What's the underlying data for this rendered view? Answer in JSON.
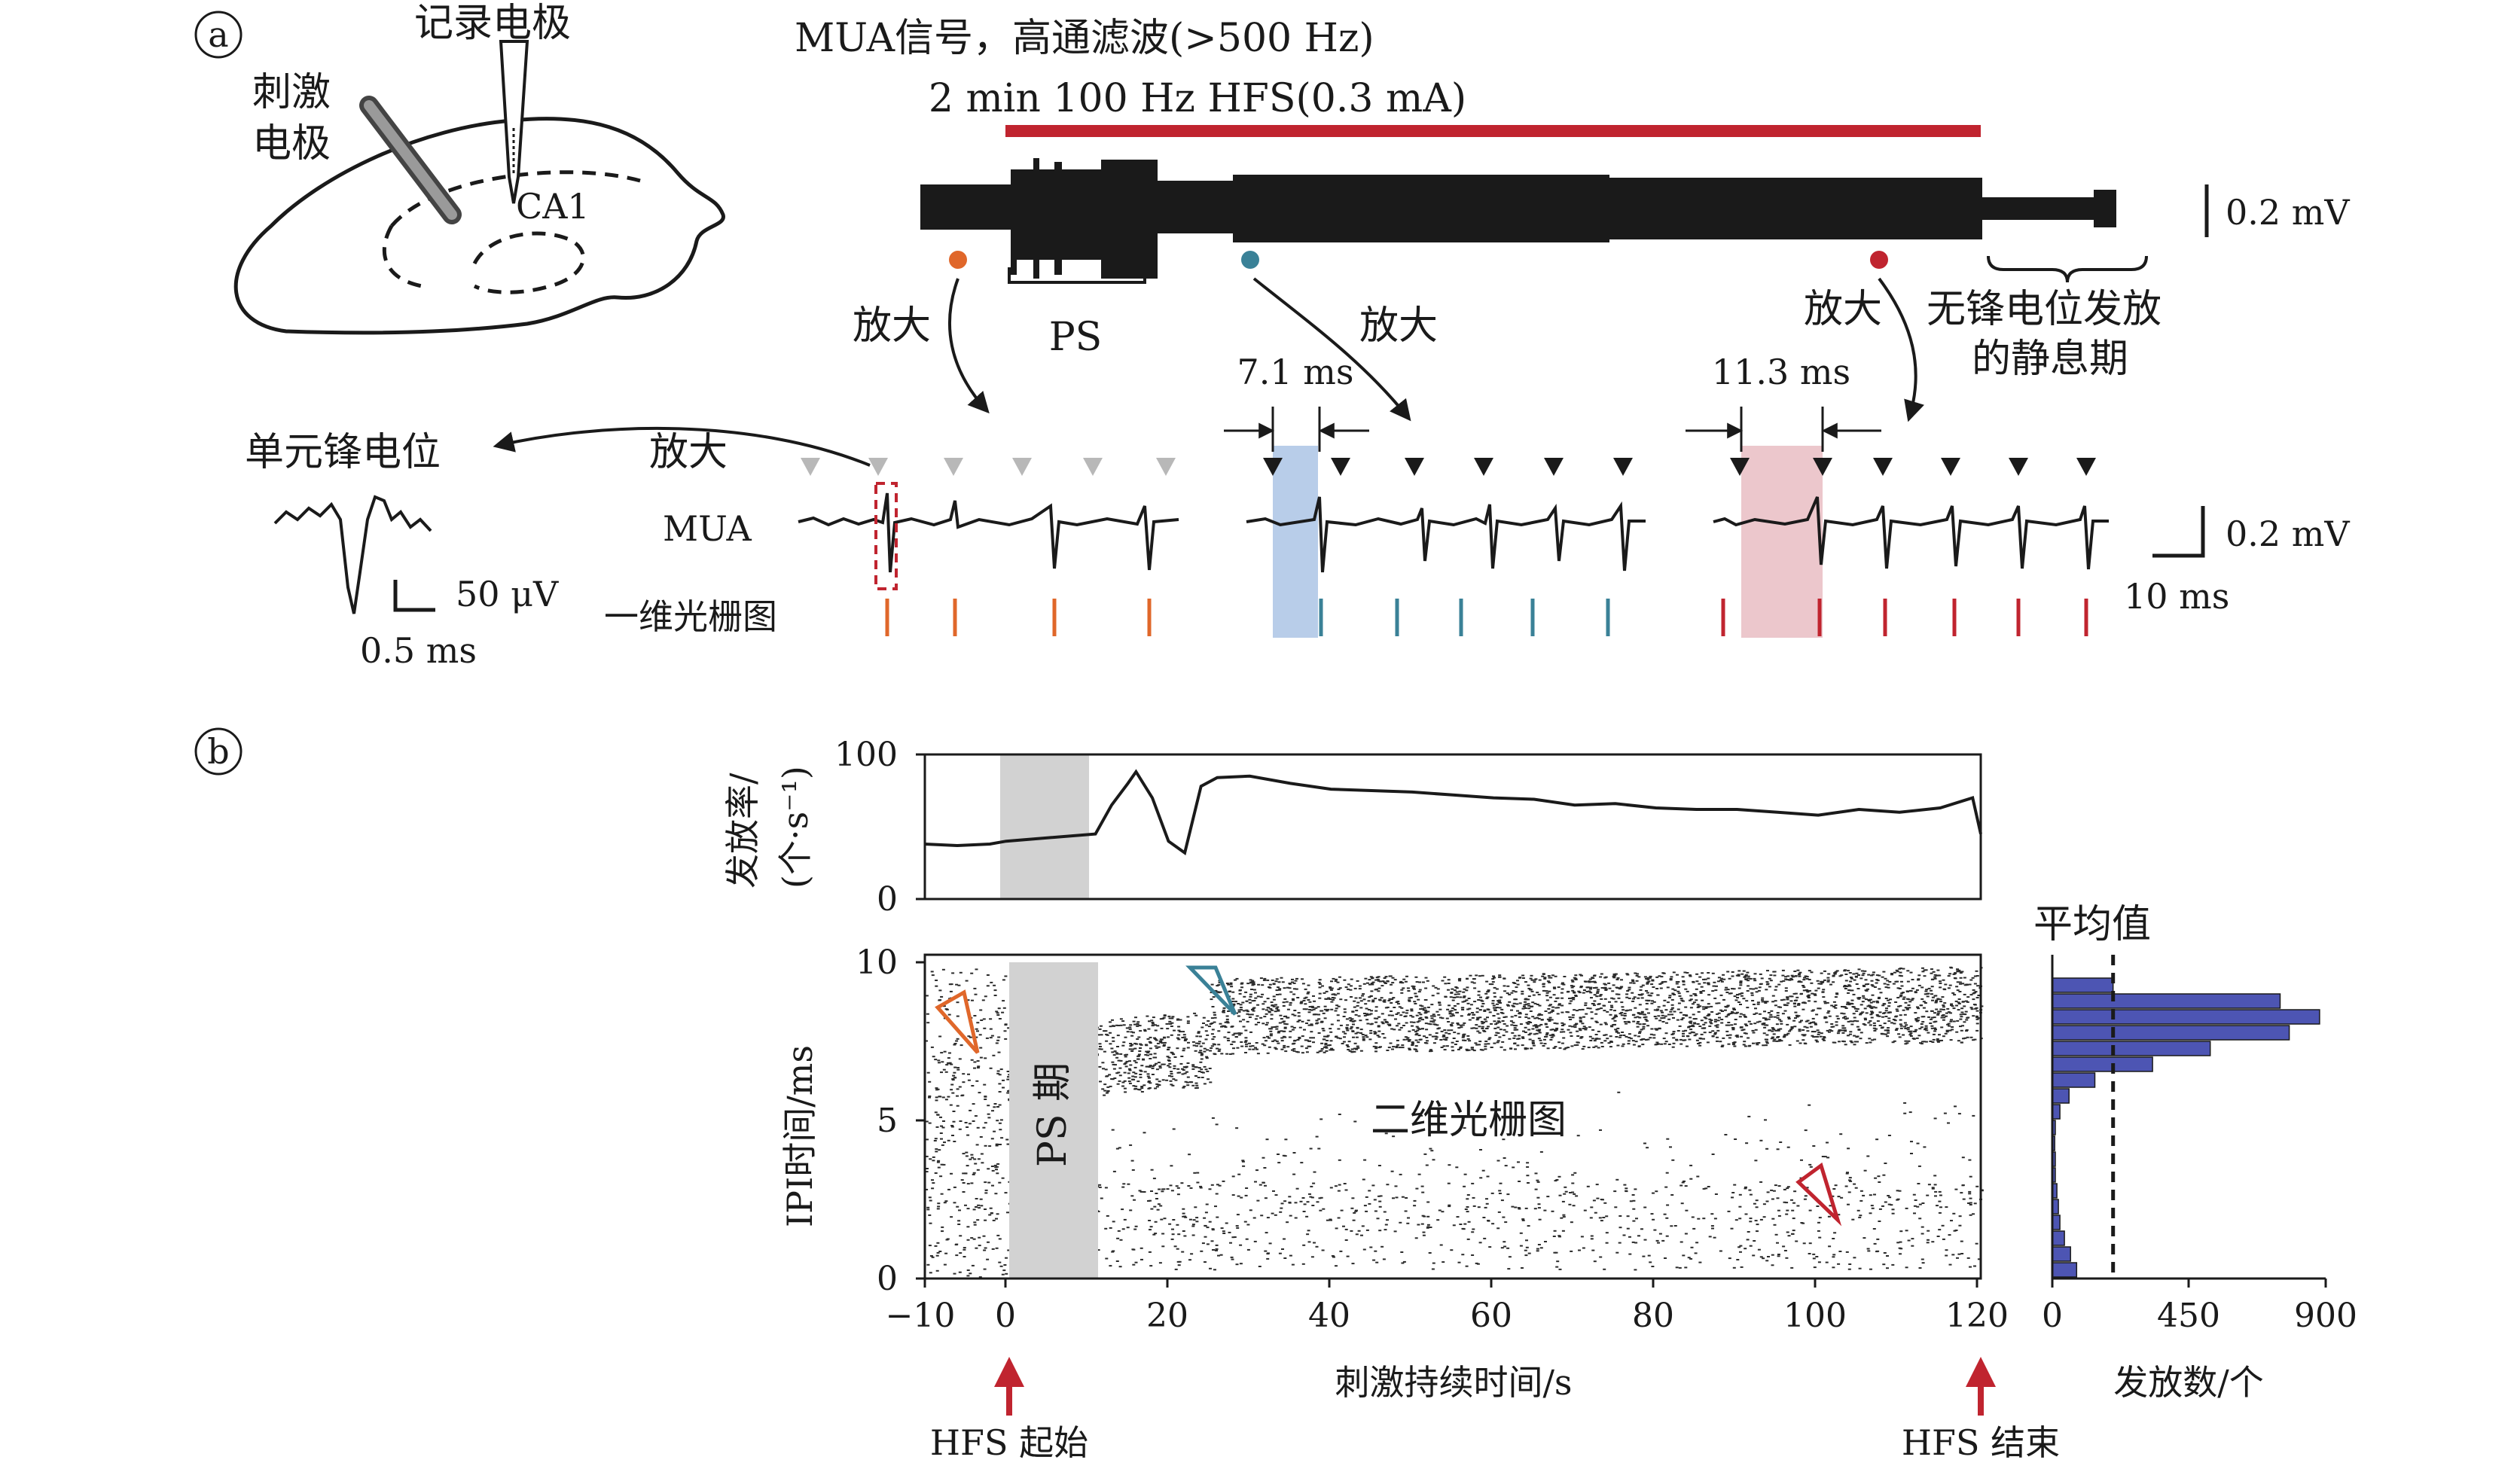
{
  "panel_a": {
    "letter": "a",
    "record_electrode": "记录电极",
    "stim_electrode_line1": "刺激",
    "stim_electrode_line2": "电极",
    "region": "CA1",
    "mua_signal": "MUA信号，高通滤波(>500 Hz)",
    "hfs_bar_label": "2 min 100 Hz HFS(0.3 mA)",
    "scale_top": "0.2 mV",
    "ps_label": "PS",
    "zoom_label": "放大",
    "silent_line1": "无锋电位发放",
    "silent_line2": "的静息期",
    "ipi_1": "7.1 ms",
    "ipi_2": "11.3 ms",
    "unit_spike": "单元锋电位",
    "mua_row": "MUA",
    "raster_1d": "一维光栅图",
    "scale_uv": "50 μV",
    "scale_ms_small": "0.5 ms",
    "scale_mid_mv": "0.2 mV",
    "scale_mid_ms": "10 ms",
    "colors": {
      "hfs_bar": "#c0242f",
      "orange": "#e0672a",
      "teal": "#3a8197",
      "red": "#c0242f",
      "blue_band": "#b8cde9",
      "pink_band": "#ecc7cc",
      "gray_marker": "#b8b8b8"
    }
  },
  "panel_b": {
    "letter": "b",
    "rate_ylabel_1": "发放率/",
    "rate_ylabel_2": "(个·s⁻¹)",
    "rate_yticks": [
      "100",
      "0"
    ],
    "raster_ylabel": "IPI时间/ms",
    "raster_yticks": [
      "10",
      "5",
      "0"
    ],
    "xticks": [
      "−10",
      "0",
      "20",
      "40",
      "60",
      "80",
      "100",
      "120"
    ],
    "xlabel": "刺激持续时间/s",
    "ps_period": "PS 期",
    "raster_2d": "二维光栅图",
    "hfs_start": "HFS 起始",
    "hfs_end": "HFS 结束",
    "hist_title": "平均值",
    "hist_xticks": [
      "0",
      "450",
      "900"
    ],
    "hist_xlabel": "发放数/个",
    "colors": {
      "hist_bar": "#4d55b3",
      "ps_gray": "#d2d2d2",
      "arrow_red": "#c0242f"
    }
  },
  "chart_data": [
    {
      "type": "line",
      "x": [
        -10,
        -6,
        -2,
        0,
        11,
        13,
        15,
        16,
        18,
        20,
        22,
        24,
        26,
        30,
        35,
        40,
        45,
        50,
        55,
        60,
        65,
        70,
        75,
        80,
        85,
        90,
        95,
        100,
        105,
        110,
        115,
        119,
        120
      ],
      "y": [
        38,
        37,
        38,
        40,
        45,
        65,
        80,
        88,
        70,
        40,
        32,
        78,
        84,
        85,
        80,
        76,
        75,
        74,
        72,
        70,
        69,
        65,
        66,
        63,
        62,
        62,
        60,
        58,
        62,
        60,
        63,
        70,
        45
      ],
      "xlim": [
        -10,
        120
      ],
      "ylim": [
        0,
        100
      ],
      "ylabel": "发放率/(个·s⁻¹)"
    },
    {
      "type": "bar",
      "orientation": "horizontal",
      "categories": [
        "0.5",
        "1",
        "1.5",
        "2",
        "2.5",
        "3",
        "3.5",
        "4",
        "4.5",
        "5",
        "5.5",
        "6",
        "6.5",
        "7",
        "7.5",
        "8",
        "8.5",
        "9",
        "9.5"
      ],
      "values": [
        80,
        60,
        40,
        25,
        20,
        15,
        10,
        10,
        8,
        10,
        25,
        55,
        140,
        330,
        520,
        780,
        880,
        750,
        200
      ],
      "xlim": [
        0,
        900
      ],
      "mean": 200,
      "xlabel": "发放数/个",
      "title": "平均值"
    }
  ]
}
